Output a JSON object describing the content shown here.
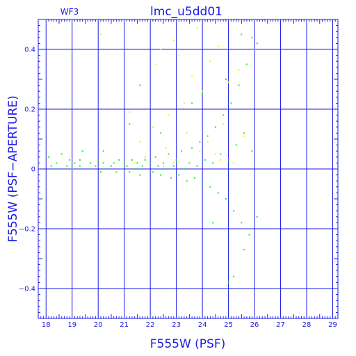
{
  "chart_data": {
    "type": "scatter",
    "title": "lmc_u5dd01",
    "subtitle": "WF3",
    "xlabel": "F555W (PSF)",
    "ylabel": "F555W (PSF−APERTURE)",
    "xlim": [
      17.7,
      29.2
    ],
    "ylim": [
      -0.5,
      0.5
    ],
    "xticks": [
      "18",
      "19",
      "20",
      "21",
      "22",
      "23",
      "24",
      "25",
      "26",
      "27",
      "28",
      "29"
    ],
    "yticks": [
      "0.4",
      "0.2",
      "0",
      "−0.2",
      "−0.4"
    ],
    "grid": true,
    "colors": {
      "axes": "#1a1ae6",
      "grid": "#1a1ae6",
      "main_series": "#22ee22",
      "secondary_series": "#f2f200"
    },
    "series": [
      {
        "color": "#22ee22",
        "points": [
          [
            18.1,
            0.04
          ],
          [
            18.2,
            0.01
          ],
          [
            18.4,
            0.02
          ],
          [
            18.5,
            0.0
          ],
          [
            18.6,
            0.05
          ],
          [
            18.8,
            0.01
          ],
          [
            18.9,
            0.03
          ],
          [
            19.0,
            0.0
          ],
          [
            19.1,
            0.02
          ],
          [
            19.3,
            0.01
          ],
          [
            19.4,
            0.06
          ],
          [
            19.6,
            0.0
          ],
          [
            19.7,
            0.02
          ],
          [
            19.9,
            0.01
          ],
          [
            20.0,
            0.03
          ],
          [
            20.1,
            -0.01
          ],
          [
            20.2,
            0.02
          ],
          [
            20.3,
            0.0
          ],
          [
            20.5,
            0.01
          ],
          [
            20.6,
            0.02
          ],
          [
            20.7,
            -0.01
          ],
          [
            20.8,
            0.03
          ],
          [
            20.9,
            0.0
          ],
          [
            21.0,
            0.02
          ],
          [
            21.1,
            0.01
          ],
          [
            21.2,
            -0.01
          ],
          [
            21.3,
            0.03
          ],
          [
            21.4,
            0.0
          ],
          [
            21.5,
            0.02
          ],
          [
            21.6,
            -0.02
          ],
          [
            21.7,
            0.01
          ],
          [
            21.8,
            0.03
          ],
          [
            21.9,
            0.0
          ],
          [
            22.0,
            0.02
          ],
          [
            22.1,
            -0.01
          ],
          [
            22.2,
            0.04
          ],
          [
            22.3,
            0.01
          ],
          [
            22.4,
            -0.02
          ],
          [
            22.5,
            0.02
          ],
          [
            22.6,
            0.0
          ],
          [
            22.7,
            0.05
          ],
          [
            22.8,
            -0.03
          ],
          [
            22.9,
            0.01
          ],
          [
            23.0,
            0.03
          ],
          [
            23.1,
            -0.02
          ],
          [
            23.2,
            0.06
          ],
          [
            23.3,
            0.0
          ],
          [
            23.4,
            -0.04
          ],
          [
            23.5,
            0.02
          ],
          [
            23.6,
            0.07
          ],
          [
            23.7,
            -0.03
          ],
          [
            23.8,
            0.01
          ],
          [
            23.9,
            0.09
          ],
          [
            24.0,
            -0.05
          ],
          [
            24.1,
            0.03
          ],
          [
            24.2,
            0.11
          ],
          [
            24.3,
            -0.06
          ],
          [
            24.4,
            0.02
          ],
          [
            24.5,
            0.14
          ],
          [
            24.6,
            -0.08
          ],
          [
            24.7,
            0.05
          ],
          [
            24.8,
            0.18
          ],
          [
            24.9,
            -0.1
          ],
          [
            25.0,
            0.03
          ],
          [
            25.1,
            0.22
          ],
          [
            25.2,
            -0.14
          ],
          [
            25.3,
            0.08
          ],
          [
            25.4,
            0.28
          ],
          [
            25.5,
            -0.18
          ],
          [
            25.6,
            0.12
          ],
          [
            25.7,
            0.35
          ],
          [
            25.8,
            -0.22
          ],
          [
            25.9,
            0.06
          ],
          [
            26.0,
            0.4
          ],
          [
            26.1,
            -0.16
          ],
          [
            25.2,
            -0.36
          ],
          [
            25.0,
            -0.38
          ],
          [
            25.9,
            0.44
          ],
          [
            21.2,
            0.15
          ],
          [
            22.4,
            0.12
          ],
          [
            23.6,
            0.22
          ],
          [
            24.4,
            -0.18
          ],
          [
            24.9,
            0.3
          ],
          [
            25.5,
            0.45
          ],
          [
            21.6,
            0.28
          ],
          [
            20.2,
            0.06
          ],
          [
            19.3,
            0.03
          ],
          [
            24.0,
            0.25
          ],
          [
            25.6,
            -0.27
          ],
          [
            26.1,
            0.42
          ]
        ]
      },
      {
        "color": "#f2f200",
        "points": [
          [
            20.1,
            0.45
          ],
          [
            21.2,
            0.19
          ],
          [
            21.6,
            0.09
          ],
          [
            22.1,
            0.14
          ],
          [
            22.2,
            0.35
          ],
          [
            22.4,
            0.4
          ],
          [
            22.6,
            0.07
          ],
          [
            22.7,
            0.18
          ],
          [
            22.9,
            0.43
          ],
          [
            23.1,
            0.38
          ],
          [
            23.3,
            0.22
          ],
          [
            23.4,
            0.12
          ],
          [
            23.6,
            0.31
          ],
          [
            23.8,
            0.47
          ],
          [
            24.0,
            0.26
          ],
          [
            24.2,
            0.09
          ],
          [
            24.3,
            0.36
          ],
          [
            24.5,
            0.05
          ],
          [
            24.6,
            0.41
          ],
          [
            24.8,
            0.15
          ],
          [
            25.0,
            0.29
          ],
          [
            25.2,
            0.02
          ],
          [
            25.4,
            0.33
          ],
          [
            25.6,
            0.11
          ],
          [
            21.8,
            0.04
          ],
          [
            22.9,
            0.02
          ],
          [
            23.9,
            0.06
          ],
          [
            21.4,
            0.02
          ],
          [
            22.5,
            0.01
          ],
          [
            24.7,
            0.03
          ]
        ]
      }
    ]
  }
}
